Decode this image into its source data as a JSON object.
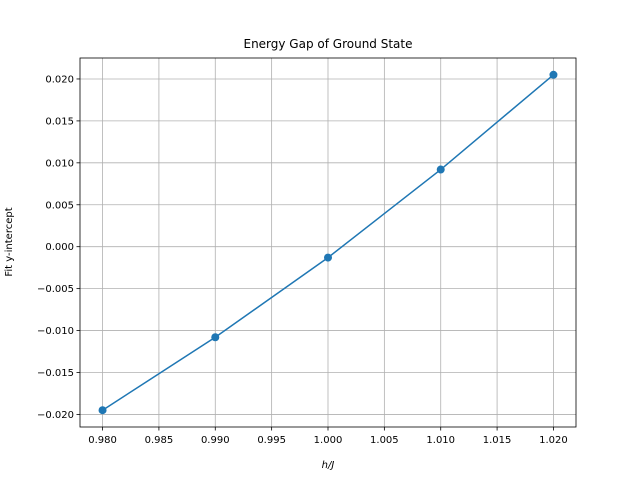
{
  "chart_data": {
    "type": "line",
    "title": "Energy Gap of Ground State",
    "xlabel": "h/J",
    "ylabel": "Fit y-intercept",
    "xlim": [
      0.978,
      1.022
    ],
    "ylim": [
      -0.0215,
      0.0225
    ],
    "grid": true,
    "x": [
      0.98,
      0.99,
      1.0,
      1.01,
      1.02
    ],
    "series": [
      {
        "values": [
          -0.0195,
          -0.0108,
          -0.0013,
          0.0092,
          0.0205
        ],
        "color": "#1f77b4",
        "markers": true
      }
    ],
    "xticks": [
      0.98,
      0.985,
      0.99,
      0.995,
      1.0,
      1.005,
      1.01,
      1.015,
      1.02
    ],
    "xtick_labels": [
      "0.980",
      "0.985",
      "0.990",
      "0.995",
      "1.000",
      "1.005",
      "1.010",
      "1.015",
      "1.020"
    ],
    "yticks": [
      -0.02,
      -0.015,
      -0.01,
      -0.005,
      0.0,
      0.005,
      0.01,
      0.015,
      0.02
    ],
    "ytick_labels": [
      "−0.020",
      "−0.015",
      "−0.010",
      "−0.005",
      "0.000",
      "0.005",
      "0.010",
      "0.015",
      "0.020"
    ]
  }
}
